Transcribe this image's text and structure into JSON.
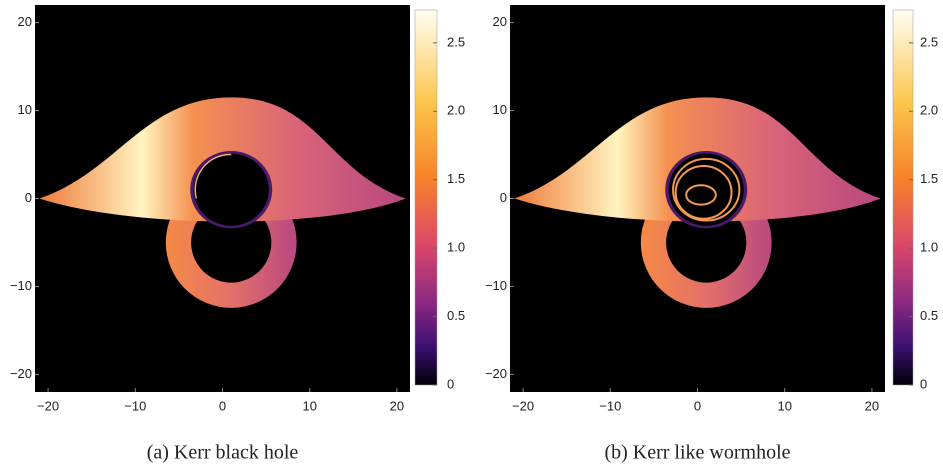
{
  "chart_data": [
    {
      "type": "heatmap",
      "caption": "(a) Kerr black hole",
      "xlim": [
        -21.5,
        21.5
      ],
      "ylim": [
        -22,
        22
      ],
      "xticks": [
        {
          "value": -20,
          "label": "−20"
        },
        {
          "value": -10,
          "label": "−10"
        },
        0,
        10,
        20
      ],
      "yticks": [
        {
          "value": -20,
          "label": "−20"
        },
        {
          "value": -10,
          "label": "−10"
        },
        0,
        10,
        20
      ],
      "colorbar_lim": [
        0,
        2.74
      ],
      "colorbar_ticks": [
        0,
        0.5,
        {
          "value": 1,
          "label": "1.0"
        },
        1.5,
        {
          "value": 2,
          "label": "2.0"
        },
        2.5
      ]
    },
    {
      "type": "heatmap",
      "caption": "(b) Kerr like wormhole",
      "xlim": [
        -21.5,
        21.5
      ],
      "ylim": [
        -22,
        22
      ],
      "xticks": [
        {
          "value": -20,
          "label": "−20"
        },
        {
          "value": -10,
          "label": "−10"
        },
        0,
        10,
        20
      ],
      "yticks": [
        {
          "value": -20,
          "label": "−20"
        },
        {
          "value": -10,
          "label": "−10"
        },
        0,
        10,
        20
      ],
      "colorbar_lim": [
        0,
        2.74
      ],
      "colorbar_ticks": [
        0,
        0.5,
        {
          "value": 1,
          "label": "1.0"
        },
        1.5,
        {
          "value": 2,
          "label": "2.0"
        },
        2.5
      ]
    }
  ]
}
